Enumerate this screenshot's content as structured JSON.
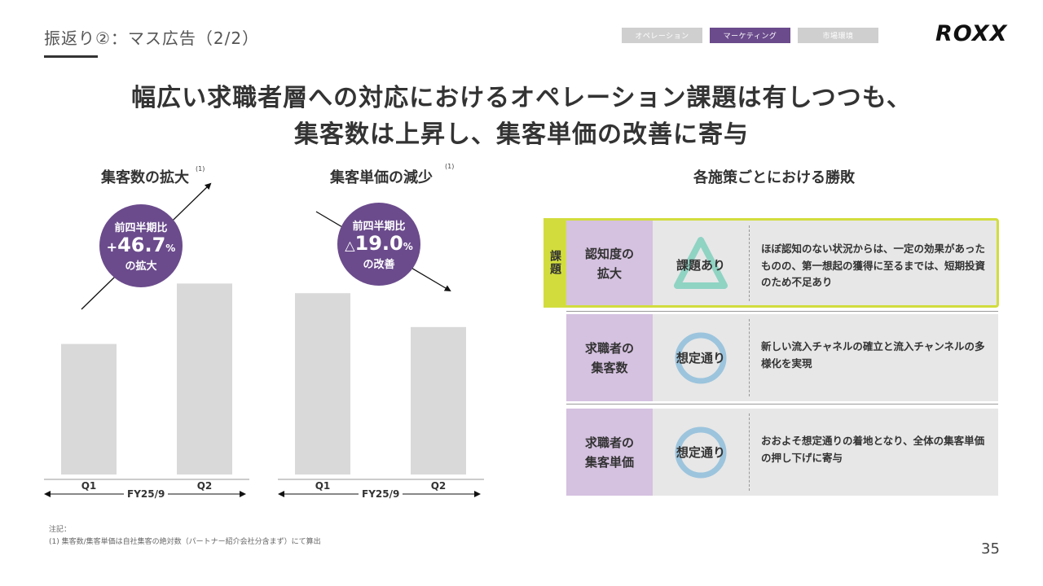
{
  "header": {
    "title": "振返り②：マス広告（2/2）",
    "nav_tabs": [
      {
        "label": "オペレーション",
        "active": false
      },
      {
        "label": "マーケティング",
        "active": true
      },
      {
        "label": "市場環境",
        "active": false
      }
    ],
    "logo": "ROXX"
  },
  "headline": {
    "line1": "幅広い求職者層への対応におけるオペレーション課題は有しつつも、",
    "line2": "集客数は上昇し、集客単価の改善に寄与"
  },
  "chart_data": [
    {
      "type": "bar",
      "title": "集客数の拡大",
      "footnote_mark": "(1)",
      "categories": [
        "Q1",
        "Q2"
      ],
      "period_label": "FY25/9",
      "values": [
        54,
        79
      ],
      "ylim": [
        0,
        100
      ],
      "bar_color": "#d9d9d9",
      "trend": "up",
      "callout": {
        "top": "前四半期比",
        "sign": "+",
        "value": "46.7",
        "unit": "%",
        "bottom": "の拡大"
      }
    },
    {
      "type": "bar",
      "title": "集客単価の減少",
      "footnote_mark": "(1)",
      "categories": [
        "Q1",
        "Q2"
      ],
      "period_label": "FY25/9",
      "values": [
        75,
        61
      ],
      "ylim": [
        0,
        100
      ],
      "bar_color": "#d9d9d9",
      "trend": "down",
      "callout": {
        "top": "前四半期比",
        "sign": "△",
        "value": "19.0",
        "unit": "%",
        "bottom": "の改善"
      }
    }
  ],
  "evaluation": {
    "title": "各施策ごとにおける勝敗",
    "issue_tag": "課題",
    "rows": [
      {
        "label": "認知度の\n拡大",
        "status": "課題あり",
        "symbol": "triangle",
        "description": "ほぼ認知のない状況からは、一定の効果があったものの、第一想起の獲得に至るまでは、短期投資のため不足あり"
      },
      {
        "label": "求職者の\n集客数",
        "status": "想定通り",
        "symbol": "circle",
        "description": "新しい流入チャネルの確立と流入チャンネルの多様化を実現"
      },
      {
        "label": "求職者の\n集客単価",
        "status": "想定通り",
        "symbol": "circle",
        "description": "おおよそ想定通りの着地となり、全体の集客単価の押し下げに寄与"
      }
    ]
  },
  "notes": {
    "heading": "注記：",
    "text": "(1) 集客数/集客単価は自社集客の絶対数（パートナー紹介会社分含まず）にて算出"
  },
  "page_number": "35",
  "colors": {
    "accent_purple": "#6b4b8c",
    "label_lavender": "#d5c1e0",
    "highlight_lime": "#d2dd3d",
    "triangle_teal": "#8fd3c3",
    "circle_blue": "#9cc4dd",
    "tab_active": "#6b4b8c",
    "tab_inactive": "#cfcfcf"
  }
}
